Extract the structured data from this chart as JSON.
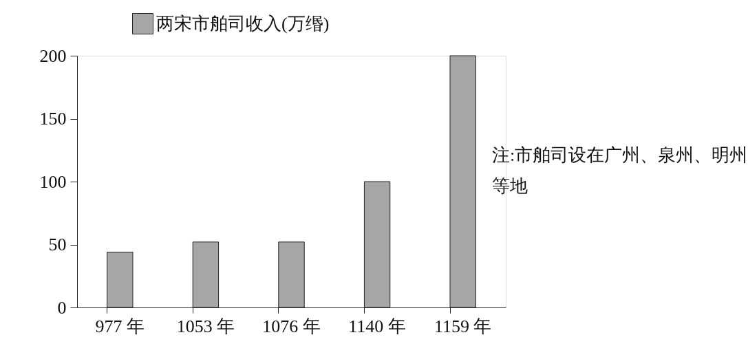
{
  "chart_data": {
    "type": "bar",
    "categories": [
      "977 年",
      "1053 年",
      "1076 年",
      "1140 年",
      "1159 年"
    ],
    "series": [
      {
        "name": "两宋市舶司收入(万缗)",
        "color": "#a6a6a6",
        "values": [
          44,
          52,
          52,
          100,
          200
        ]
      }
    ],
    "ylim": [
      0,
      200
    ],
    "yticks": [
      0,
      50,
      100,
      150,
      200
    ],
    "grid": false,
    "legend": "top",
    "annotations": [
      "注:市舶司设在广州、泉州、明州等地"
    ]
  }
}
